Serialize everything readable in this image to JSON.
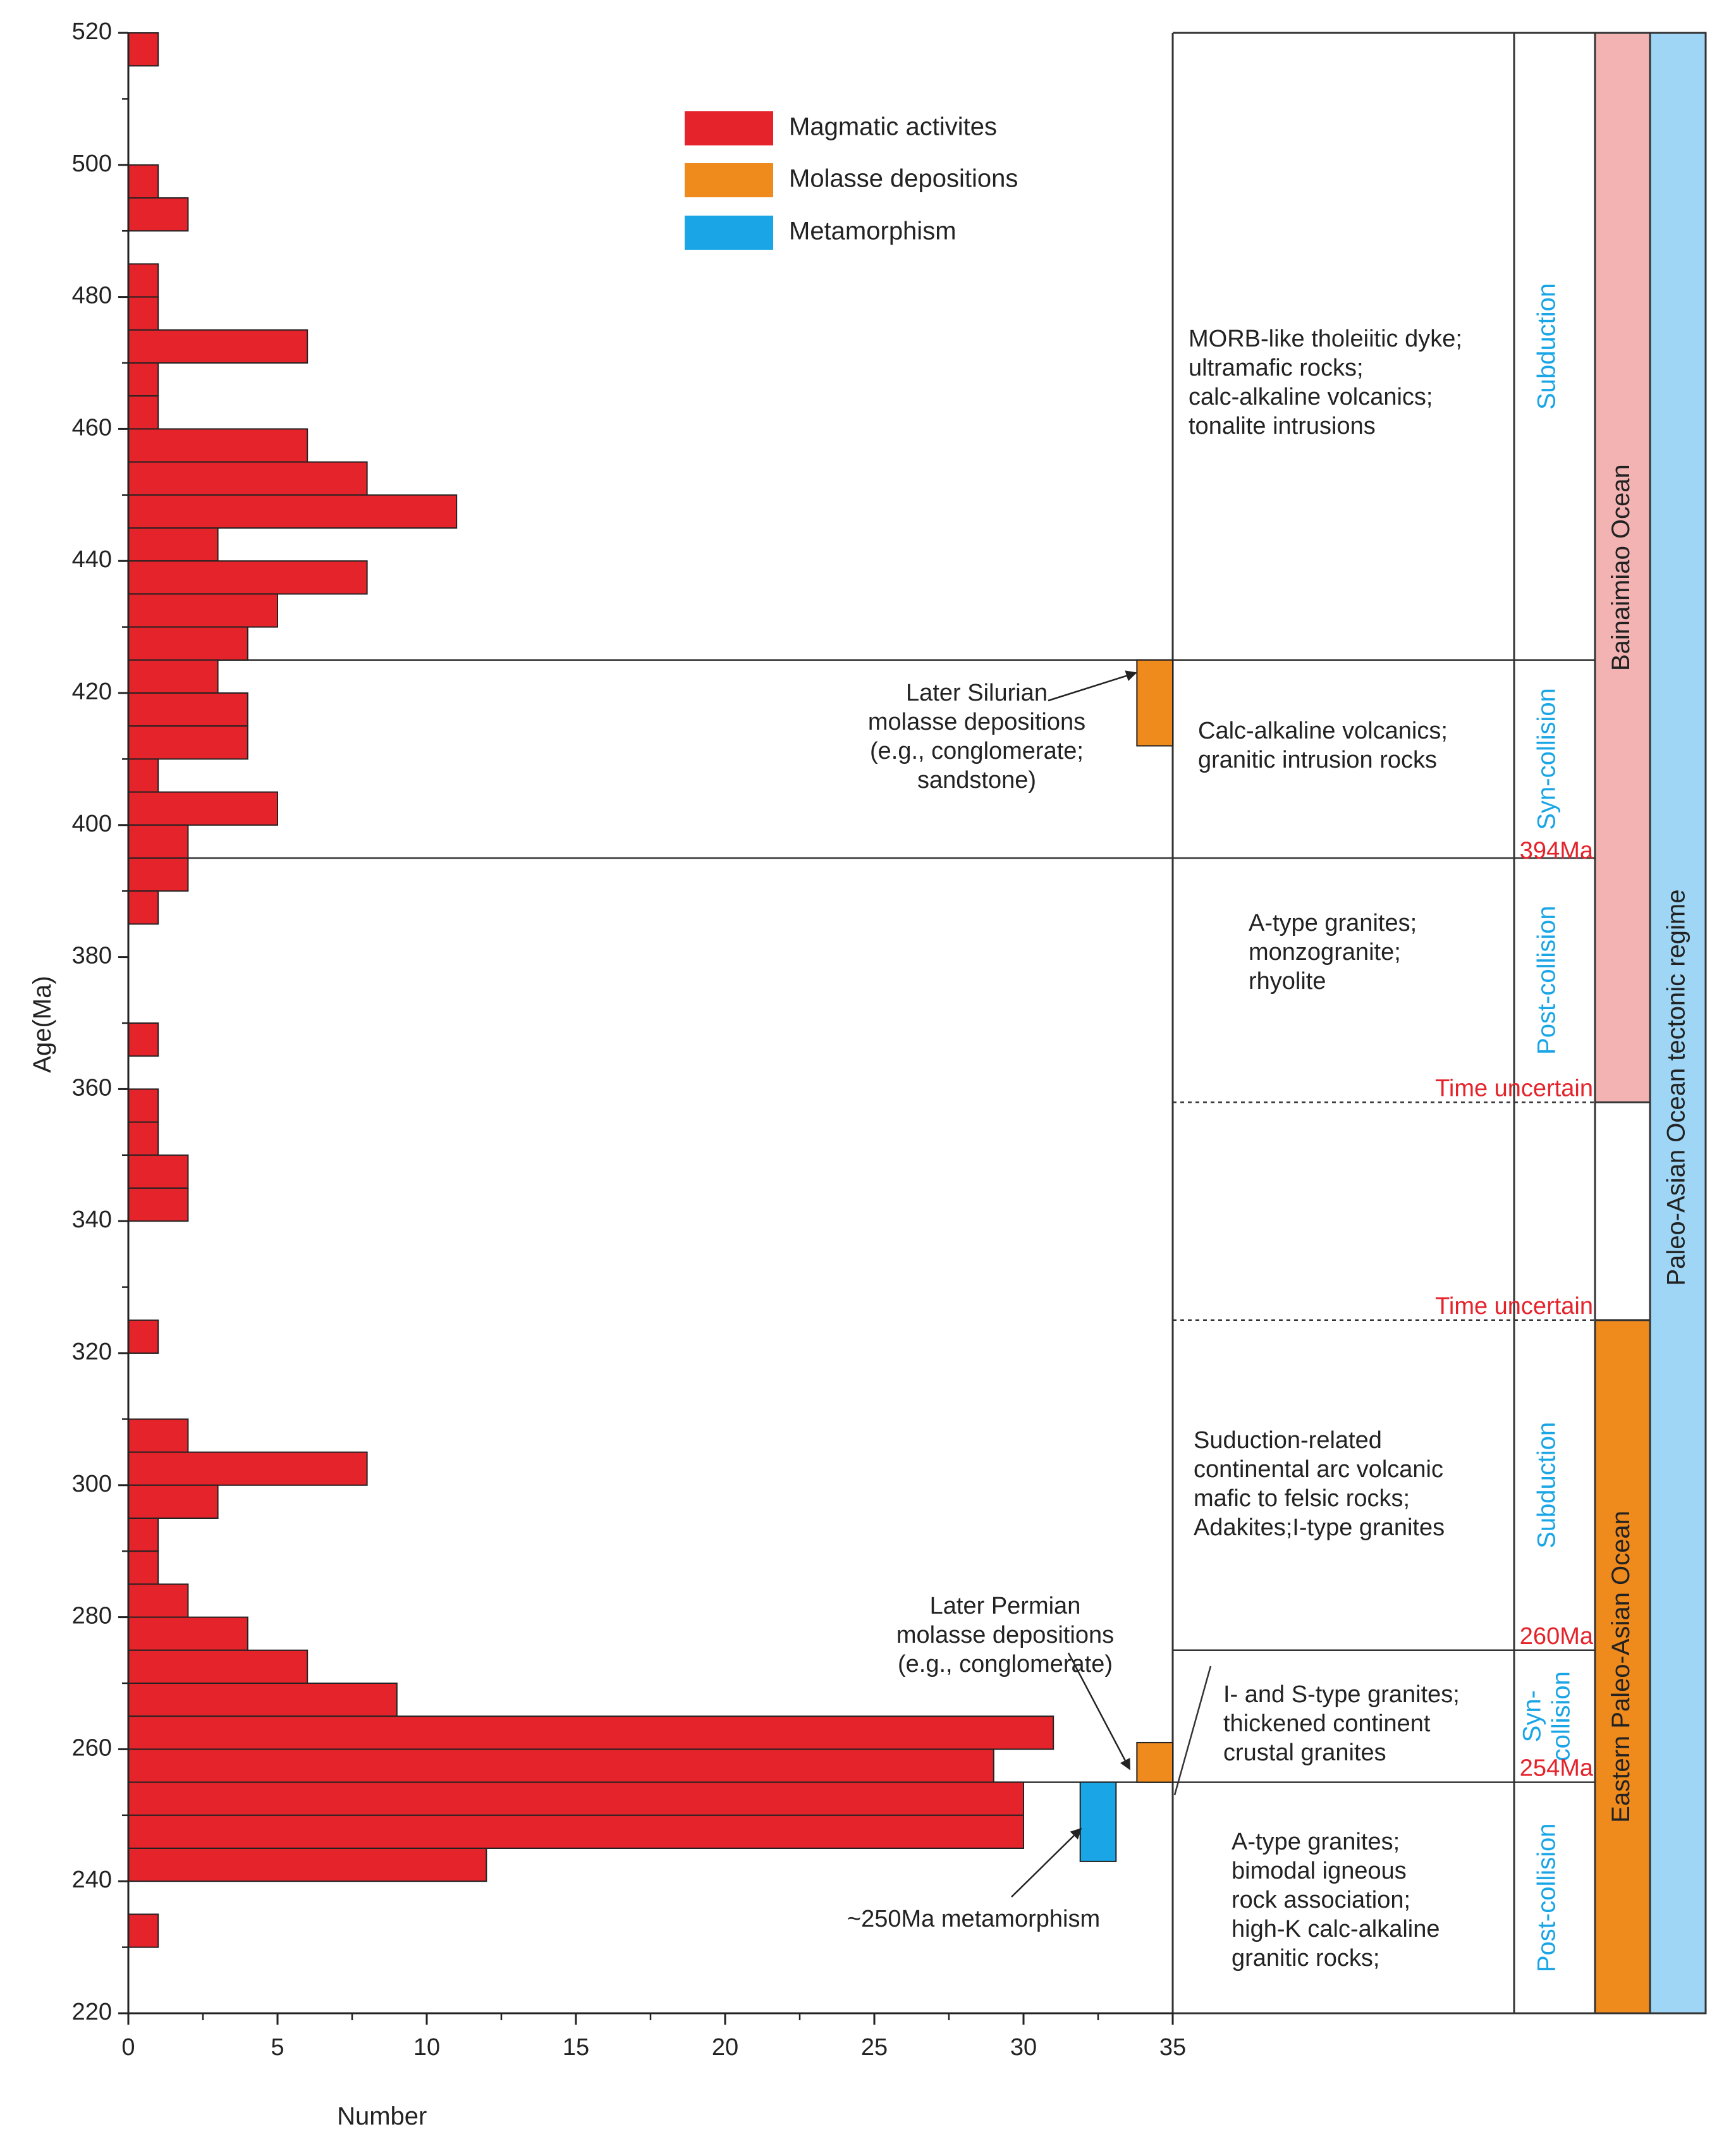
{
  "chart_data": {
    "type": "bar",
    "orientation": "horizontal",
    "xlabel": "Number",
    "ylabel": "Age(Ma)",
    "xlim": [
      0,
      35
    ],
    "ylim": [
      220,
      520
    ],
    "x_ticks": [
      0,
      5,
      10,
      15,
      20,
      25,
      30,
      35
    ],
    "y_ticks": [
      220,
      240,
      260,
      280,
      300,
      320,
      340,
      360,
      380,
      400,
      420,
      440,
      460,
      480,
      500,
      520
    ],
    "bin_width_ma": 5,
    "colors": {
      "magmatic": "#e5232b",
      "molasse": "#ef8a1d",
      "metamorphism": "#1aa5e6",
      "bainaimiao_bar": "#f3b3b3",
      "paleo_asian_bar": "#9fd6f5",
      "phase_text": "#1aa5e6",
      "marker_text": "#e5232b"
    },
    "series": [
      {
        "name": "Magmatic activites",
        "bins": [
          {
            "age_from": 515,
            "age_to": 520,
            "count": 1
          },
          {
            "age_from": 495,
            "age_to": 500,
            "count": 1
          },
          {
            "age_from": 490,
            "age_to": 495,
            "count": 2
          },
          {
            "age_from": 480,
            "age_to": 485,
            "count": 1
          },
          {
            "age_from": 475,
            "age_to": 480,
            "count": 1
          },
          {
            "age_from": 470,
            "age_to": 475,
            "count": 6
          },
          {
            "age_from": 465,
            "age_to": 470,
            "count": 1
          },
          {
            "age_from": 460,
            "age_to": 465,
            "count": 1
          },
          {
            "age_from": 455,
            "age_to": 460,
            "count": 6
          },
          {
            "age_from": 450,
            "age_to": 455,
            "count": 8
          },
          {
            "age_from": 445,
            "age_to": 450,
            "count": 11
          },
          {
            "age_from": 440,
            "age_to": 445,
            "count": 3
          },
          {
            "age_from": 435,
            "age_to": 440,
            "count": 8
          },
          {
            "age_from": 430,
            "age_to": 435,
            "count": 5
          },
          {
            "age_from": 425,
            "age_to": 430,
            "count": 4
          },
          {
            "age_from": 420,
            "age_to": 425,
            "count": 3
          },
          {
            "age_from": 415,
            "age_to": 420,
            "count": 4
          },
          {
            "age_from": 410,
            "age_to": 415,
            "count": 4
          },
          {
            "age_from": 405,
            "age_to": 410,
            "count": 1
          },
          {
            "age_from": 400,
            "age_to": 405,
            "count": 5
          },
          {
            "age_from": 395,
            "age_to": 400,
            "count": 2
          },
          {
            "age_from": 390,
            "age_to": 395,
            "count": 2
          },
          {
            "age_from": 385,
            "age_to": 390,
            "count": 1
          },
          {
            "age_from": 365,
            "age_to": 370,
            "count": 1
          },
          {
            "age_from": 355,
            "age_to": 360,
            "count": 1
          },
          {
            "age_from": 350,
            "age_to": 355,
            "count": 1
          },
          {
            "age_from": 345,
            "age_to": 350,
            "count": 2
          },
          {
            "age_from": 340,
            "age_to": 345,
            "count": 2
          },
          {
            "age_from": 320,
            "age_to": 325,
            "count": 1
          },
          {
            "age_from": 305,
            "age_to": 310,
            "count": 2
          },
          {
            "age_from": 300,
            "age_to": 305,
            "count": 8
          },
          {
            "age_from": 295,
            "age_to": 300,
            "count": 3
          },
          {
            "age_from": 290,
            "age_to": 295,
            "count": 1
          },
          {
            "age_from": 285,
            "age_to": 290,
            "count": 1
          },
          {
            "age_from": 280,
            "age_to": 285,
            "count": 2
          },
          {
            "age_from": 275,
            "age_to": 280,
            "count": 4
          },
          {
            "age_from": 270,
            "age_to": 275,
            "count": 6
          },
          {
            "age_from": 265,
            "age_to": 270,
            "count": 9
          },
          {
            "age_from": 260,
            "age_to": 265,
            "count": 31
          },
          {
            "age_from": 255,
            "age_to": 260,
            "count": 29
          },
          {
            "age_from": 250,
            "age_to": 255,
            "count": 30
          },
          {
            "age_from": 245,
            "age_to": 250,
            "count": 30
          },
          {
            "age_from": 240,
            "age_to": 245,
            "count": 12
          },
          {
            "age_from": 230,
            "age_to": 235,
            "count": 1
          }
        ]
      },
      {
        "name": "Molasse depositions",
        "ranges": [
          {
            "age_from": 412,
            "age_to": 425,
            "x_from": 33.8,
            "x_to": 35
          },
          {
            "age_from": 255,
            "age_to": 261,
            "x_from": 33.8,
            "x_to": 35
          }
        ]
      },
      {
        "name": "Metamorphism",
        "ranges": [
          {
            "age_from": 243,
            "age_to": 255,
            "x_from": 31.9,
            "x_to": 33.1
          }
        ]
      }
    ],
    "legend": {
      "position": "top-center",
      "entries": [
        {
          "label": "Magmatic activites",
          "color": "#e5232b"
        },
        {
          "label": "Molasse depositions",
          "color": "#ef8a1d"
        },
        {
          "label": "Metamorphism",
          "color": "#1aa5e6"
        }
      ]
    },
    "boundaries": [
      {
        "age": 425,
        "style": "solid",
        "span": "full"
      },
      {
        "age": 395,
        "style": "solid",
        "span": "full"
      },
      {
        "age": 358,
        "style": "dashed",
        "span": "columns"
      },
      {
        "age": 325,
        "style": "dashed",
        "span": "columns"
      },
      {
        "age": 275,
        "style": "solid",
        "span": "columns"
      },
      {
        "age": 255,
        "style": "solid",
        "span": "full"
      }
    ],
    "phase_markers": [
      {
        "label": "394Ma",
        "age": 394
      },
      {
        "label": "Time uncertain",
        "age": 358
      },
      {
        "label": "Time uncertain",
        "age": 325
      },
      {
        "label": "260Ma",
        "age": 275
      },
      {
        "label": "254Ma",
        "age": 255
      }
    ],
    "rock_descriptions": [
      {
        "lines": [
          "MORB-like tholeiitic dyke;",
          "ultramafic rocks;",
          "calc-alkaline volcanics;",
          "tonalite intrusions"
        ]
      },
      {
        "lines": [
          "Calc-alkaline volcanics;",
          "granitic intrusion rocks"
        ]
      },
      {
        "lines": [
          "A-type granites;",
          "monzogranite;",
          "rhyolite"
        ]
      },
      {
        "lines": [
          "Suduction-related",
          "continental arc volcanic",
          "mafic to felsic rocks;",
          "Adakites;I-type granites"
        ]
      },
      {
        "lines": [
          "I- and S-type granites;",
          "thickened continent",
          "crustal granites"
        ]
      },
      {
        "lines": [
          "A-type granites;",
          "bimodal igneous",
          "rock association;",
          "high-K calc-alkaline",
          "granitic rocks;"
        ]
      }
    ],
    "tectonic_phases": [
      {
        "lines": [
          "Subduction"
        ],
        "age_from": 425,
        "age_to": 520
      },
      {
        "lines": [
          "Syn-collision"
        ],
        "age_from": 395,
        "age_to": 425
      },
      {
        "lines": [
          "Post-collision"
        ],
        "age_from": 358,
        "age_to": 395
      },
      {
        "lines": [
          "Subduction"
        ],
        "age_from": 275,
        "age_to": 325
      },
      {
        "lines": [
          "Syn-",
          "collision"
        ],
        "age_from": 255,
        "age_to": 275
      },
      {
        "lines": [
          "Post-collision"
        ],
        "age_from": 220,
        "age_to": 255
      }
    ],
    "oceans": [
      {
        "label": "Bainaimiao Ocean",
        "age_from": 358,
        "age_to": 520,
        "color": "#f3b3b3"
      },
      {
        "label": "Eastern Paleo-Asian Ocean",
        "age_from": 220,
        "age_to": 325,
        "color": "#ef8a1d"
      }
    ],
    "regime": {
      "label": "Paleo-Asian Ocean tectonic regime",
      "age_from": 220,
      "age_to": 520,
      "color": "#9fd6f5"
    },
    "annotations": [
      {
        "lines": [
          "Later Silurian",
          "molasse depositions",
          "(e.g., conglomerate;",
          "sandstone)"
        ],
        "points_to": "Molasse depositions 412-425 Ma"
      },
      {
        "lines": [
          "Later Permian",
          "molasse depositions",
          "(e.g., conglomerate)"
        ],
        "points_to": "Molasse depositions 255-261 Ma"
      },
      {
        "lines": [
          "~250Ma metamorphism"
        ],
        "points_to": "Metamorphism 243-255 Ma"
      }
    ]
  }
}
